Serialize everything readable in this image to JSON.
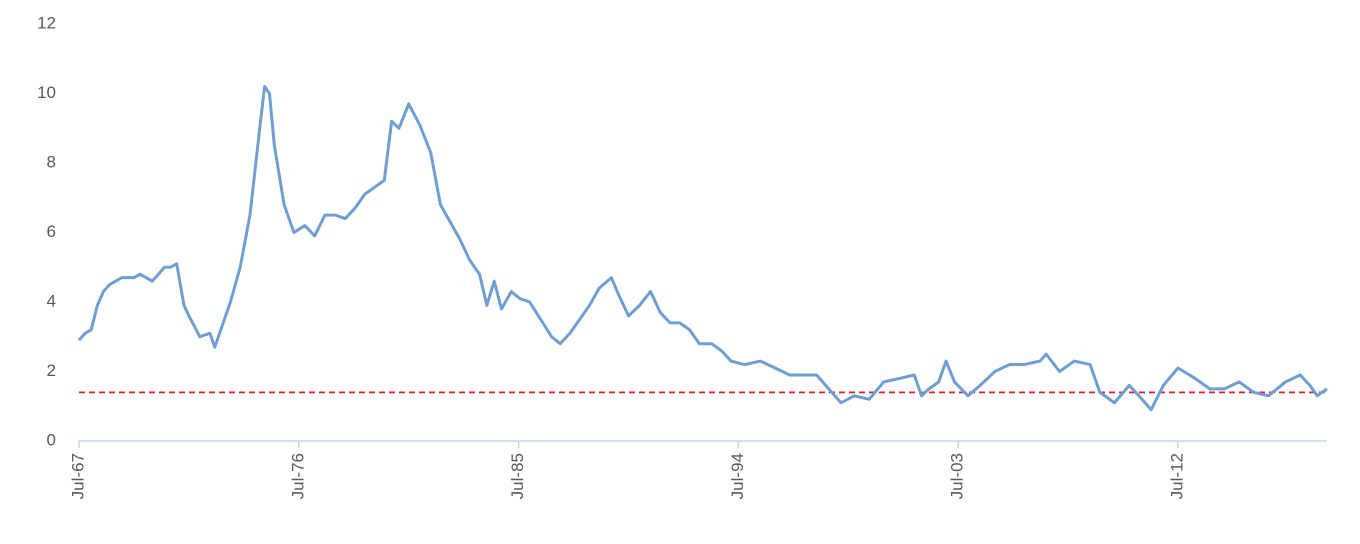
{
  "chart_data": {
    "type": "line",
    "x": [
      1967.5,
      1967.75,
      1968.0,
      1968.25,
      1968.5,
      1968.75,
      1969.0,
      1969.25,
      1969.5,
      1969.75,
      1970.0,
      1970.25,
      1970.5,
      1970.75,
      1971.0,
      1971.25,
      1971.5,
      1971.8,
      1972.0,
      1972.45,
      1972.86,
      1973.06,
      1973.7,
      1974.1,
      1974.5,
      1974.9,
      1975.1,
      1975.3,
      1975.5,
      1975.9,
      1976.3,
      1976.75,
      1977.15,
      1977.57,
      1978.0,
      1978.4,
      1978.8,
      1979.2,
      1979.6,
      1980.0,
      1980.3,
      1980.6,
      1981.0,
      1981.45,
      1981.9,
      1982.3,
      1982.7,
      1983.1,
      1983.5,
      1983.9,
      1984.2,
      1984.5,
      1984.8,
      1985.2,
      1985.55,
      1985.95,
      1986.4,
      1986.85,
      1987.2,
      1987.6,
      1988.0,
      1988.4,
      1988.8,
      1989.3,
      1989.6,
      1990.0,
      1990.45,
      1990.9,
      1991.3,
      1991.7,
      1992.1,
      1992.5,
      1992.9,
      1993.4,
      1993.8,
      1994.2,
      1994.75,
      1995.4,
      1996.0,
      1996.6,
      1997.2,
      1997.7,
      1998.2,
      1998.7,
      1999.25,
      1999.85,
      2000.45,
      2001.1,
      2001.7,
      2002.0,
      2002.3,
      2002.7,
      2003.0,
      2003.35,
      2003.9,
      2004.4,
      2005.0,
      2005.6,
      2006.2,
      2006.85,
      2007.1,
      2007.65,
      2008.25,
      2008.9,
      2009.3,
      2009.9,
      2010.5,
      2010.9,
      2011.4,
      2011.9,
      2012.5,
      2013.2,
      2013.8,
      2014.4,
      2015.0,
      2015.6,
      2016.2,
      2016.9,
      2017.5,
      2017.9,
      2018.2,
      2018.6
    ],
    "series": [
      {
        "color": "#6f9fd2",
        "values": [
          2.9,
          3.1,
          3.2,
          3.9,
          4.3,
          4.5,
          4.6,
          4.7,
          4.7,
          4.7,
          4.8,
          4.7,
          4.6,
          4.8,
          5.0,
          5.0,
          5.1,
          3.9,
          3.6,
          3.0,
          3.1,
          2.7,
          4.0,
          5.0,
          6.5,
          9.0,
          10.2,
          10.0,
          8.5,
          6.8,
          6.0,
          6.2,
          5.9,
          6.5,
          6.5,
          6.4,
          6.7,
          7.1,
          7.3,
          7.5,
          9.2,
          9.0,
          9.7,
          9.1,
          8.3,
          6.8,
          6.3,
          5.8,
          5.2,
          4.8,
          3.9,
          4.6,
          3.8,
          4.3,
          4.1,
          4.0,
          3.5,
          3.0,
          2.8,
          3.1,
          3.5,
          3.9,
          4.4,
          4.7,
          4.2,
          3.6,
          3.9,
          4.3,
          3.7,
          3.4,
          3.4,
          3.2,
          2.8,
          2.8,
          2.6,
          2.3,
          2.2,
          2.3,
          2.1,
          1.9,
          1.9,
          1.9,
          1.5,
          1.1,
          1.3,
          1.2,
          1.7,
          1.8,
          1.9,
          1.3,
          1.5,
          1.7,
          2.3,
          1.7,
          1.3,
          1.6,
          2.0,
          2.2,
          2.2,
          2.3,
          2.5,
          2.0,
          2.3,
          2.2,
          1.4,
          1.1,
          1.6,
          1.3,
          0.9,
          1.6,
          2.1,
          1.8,
          1.5,
          1.5,
          1.7,
          1.4,
          1.3,
          1.7,
          1.9,
          1.6,
          1.3,
          1.5
        ]
      }
    ],
    "reference_line": {
      "value": 1.4,
      "color": "#e02020"
    },
    "xlim": [
      1967.5,
      2018.6
    ],
    "xticks": [
      {
        "value": 1967.5,
        "label": "Jul-67"
      },
      {
        "value": 1976.5,
        "label": "Jul-76"
      },
      {
        "value": 1985.5,
        "label": "Jul-85"
      },
      {
        "value": 1994.5,
        "label": "Jul-94"
      },
      {
        "value": 2003.5,
        "label": "Jul-03"
      },
      {
        "value": 2012.5,
        "label": "Jul-12"
      }
    ],
    "ylim": [
      0,
      12
    ],
    "yticks": [
      0,
      2,
      4,
      6,
      8,
      10,
      12
    ],
    "grid": false
  }
}
